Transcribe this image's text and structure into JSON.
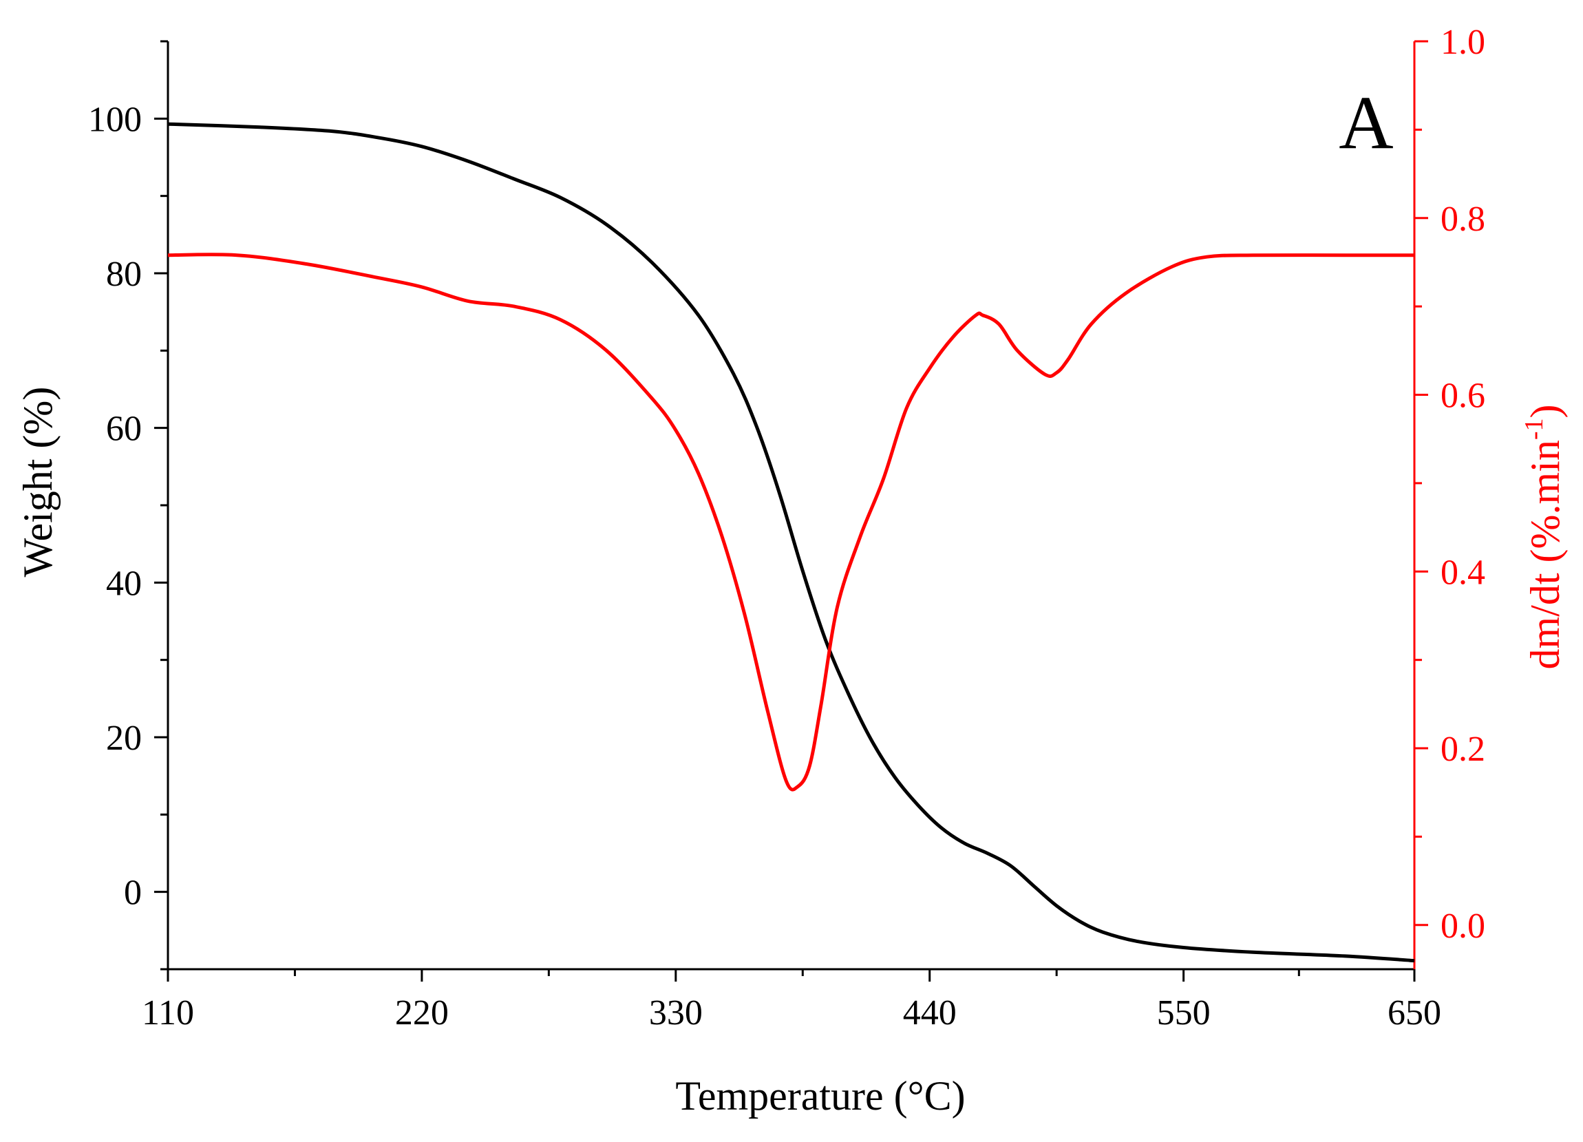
{
  "chart_data": {
    "type": "line",
    "panel_label": "A",
    "xlabel": "Temperature (°C)",
    "ylabel_left": "Weight (%)",
    "ylabel_right_base": "dm/dt (%.min",
    "ylabel_right_sup": "-1",
    "ylabel_right_close": ")",
    "xlim": [
      110,
      650
    ],
    "ylim_left": [
      -10,
      110
    ],
    "ylim_right": [
      -0.05,
      1.0
    ],
    "x_ticks": [
      110,
      220,
      330,
      440,
      550,
      650
    ],
    "x_tick_labels": [
      "110",
      "220",
      "330",
      "440",
      "550",
      "650"
    ],
    "x_minor_ticks": [
      165,
      275,
      385,
      495,
      600
    ],
    "y_left_ticks": [
      0,
      20,
      40,
      60,
      80,
      100
    ],
    "y_left_tick_labels": [
      "0",
      "20",
      "40",
      "60",
      "80",
      "100"
    ],
    "y_left_minor_ticks": [
      -10,
      10,
      30,
      50,
      70,
      90,
      110
    ],
    "y_right_ticks": [
      0.0,
      0.2,
      0.4,
      0.6,
      0.8,
      1.0
    ],
    "y_right_tick_labels": [
      "0.0",
      "0.2",
      "0.4",
      "0.6",
      "0.8",
      "1.0"
    ],
    "y_right_minor_ticks": [
      0.1,
      0.3,
      0.5,
      0.7,
      0.9
    ],
    "colors": {
      "weight": "#000000",
      "dmdt": "#ff0000",
      "axis_left": "#000000",
      "axis_right": "#ff0000"
    },
    "series": [
      {
        "name": "Weight",
        "axis": "left",
        "color": "#000000",
        "x": [
          110,
          150,
          180,
          200,
          220,
          240,
          260,
          280,
          300,
          320,
          340,
          355,
          365,
          375,
          385,
          395,
          405,
          415,
          425,
          435,
          445,
          455,
          465,
          475,
          485,
          495,
          505,
          515,
          530,
          550,
          580,
          620,
          650
        ],
        "y": [
          99.3,
          98.9,
          98.4,
          97.6,
          96.4,
          94.5,
          92.2,
          89.8,
          86.3,
          81.3,
          74.5,
          67,
          60.2,
          51.5,
          41.5,
          32.5,
          25.5,
          19.5,
          14.8,
          11.2,
          8.3,
          6.3,
          5.0,
          3.4,
          0.8,
          -1.8,
          -3.8,
          -5.2,
          -6.4,
          -7.2,
          -7.8,
          -8.3,
          -8.9
        ]
      },
      {
        "name": "dm/dt",
        "axis": "right",
        "color": "#ff0000",
        "x": [
          110,
          140,
          170,
          200,
          220,
          240,
          260,
          280,
          300,
          320,
          330,
          340,
          350,
          360,
          370,
          378,
          383,
          388,
          393,
          400,
          410,
          420,
          430,
          440,
          450,
          460,
          463,
          470,
          478,
          490,
          495,
          500,
          510,
          525,
          545,
          560,
          580,
          620,
          650
        ],
        "y": [
          0.758,
          0.758,
          0.748,
          0.733,
          0.722,
          0.706,
          0.7,
          0.685,
          0.65,
          0.595,
          0.56,
          0.51,
          0.44,
          0.35,
          0.24,
          0.162,
          0.157,
          0.18,
          0.25,
          0.36,
          0.44,
          0.505,
          0.585,
          0.63,
          0.665,
          0.69,
          0.69,
          0.68,
          0.65,
          0.623,
          0.625,
          0.64,
          0.68,
          0.715,
          0.745,
          0.756,
          0.758,
          0.758,
          0.758
        ]
      }
    ]
  }
}
